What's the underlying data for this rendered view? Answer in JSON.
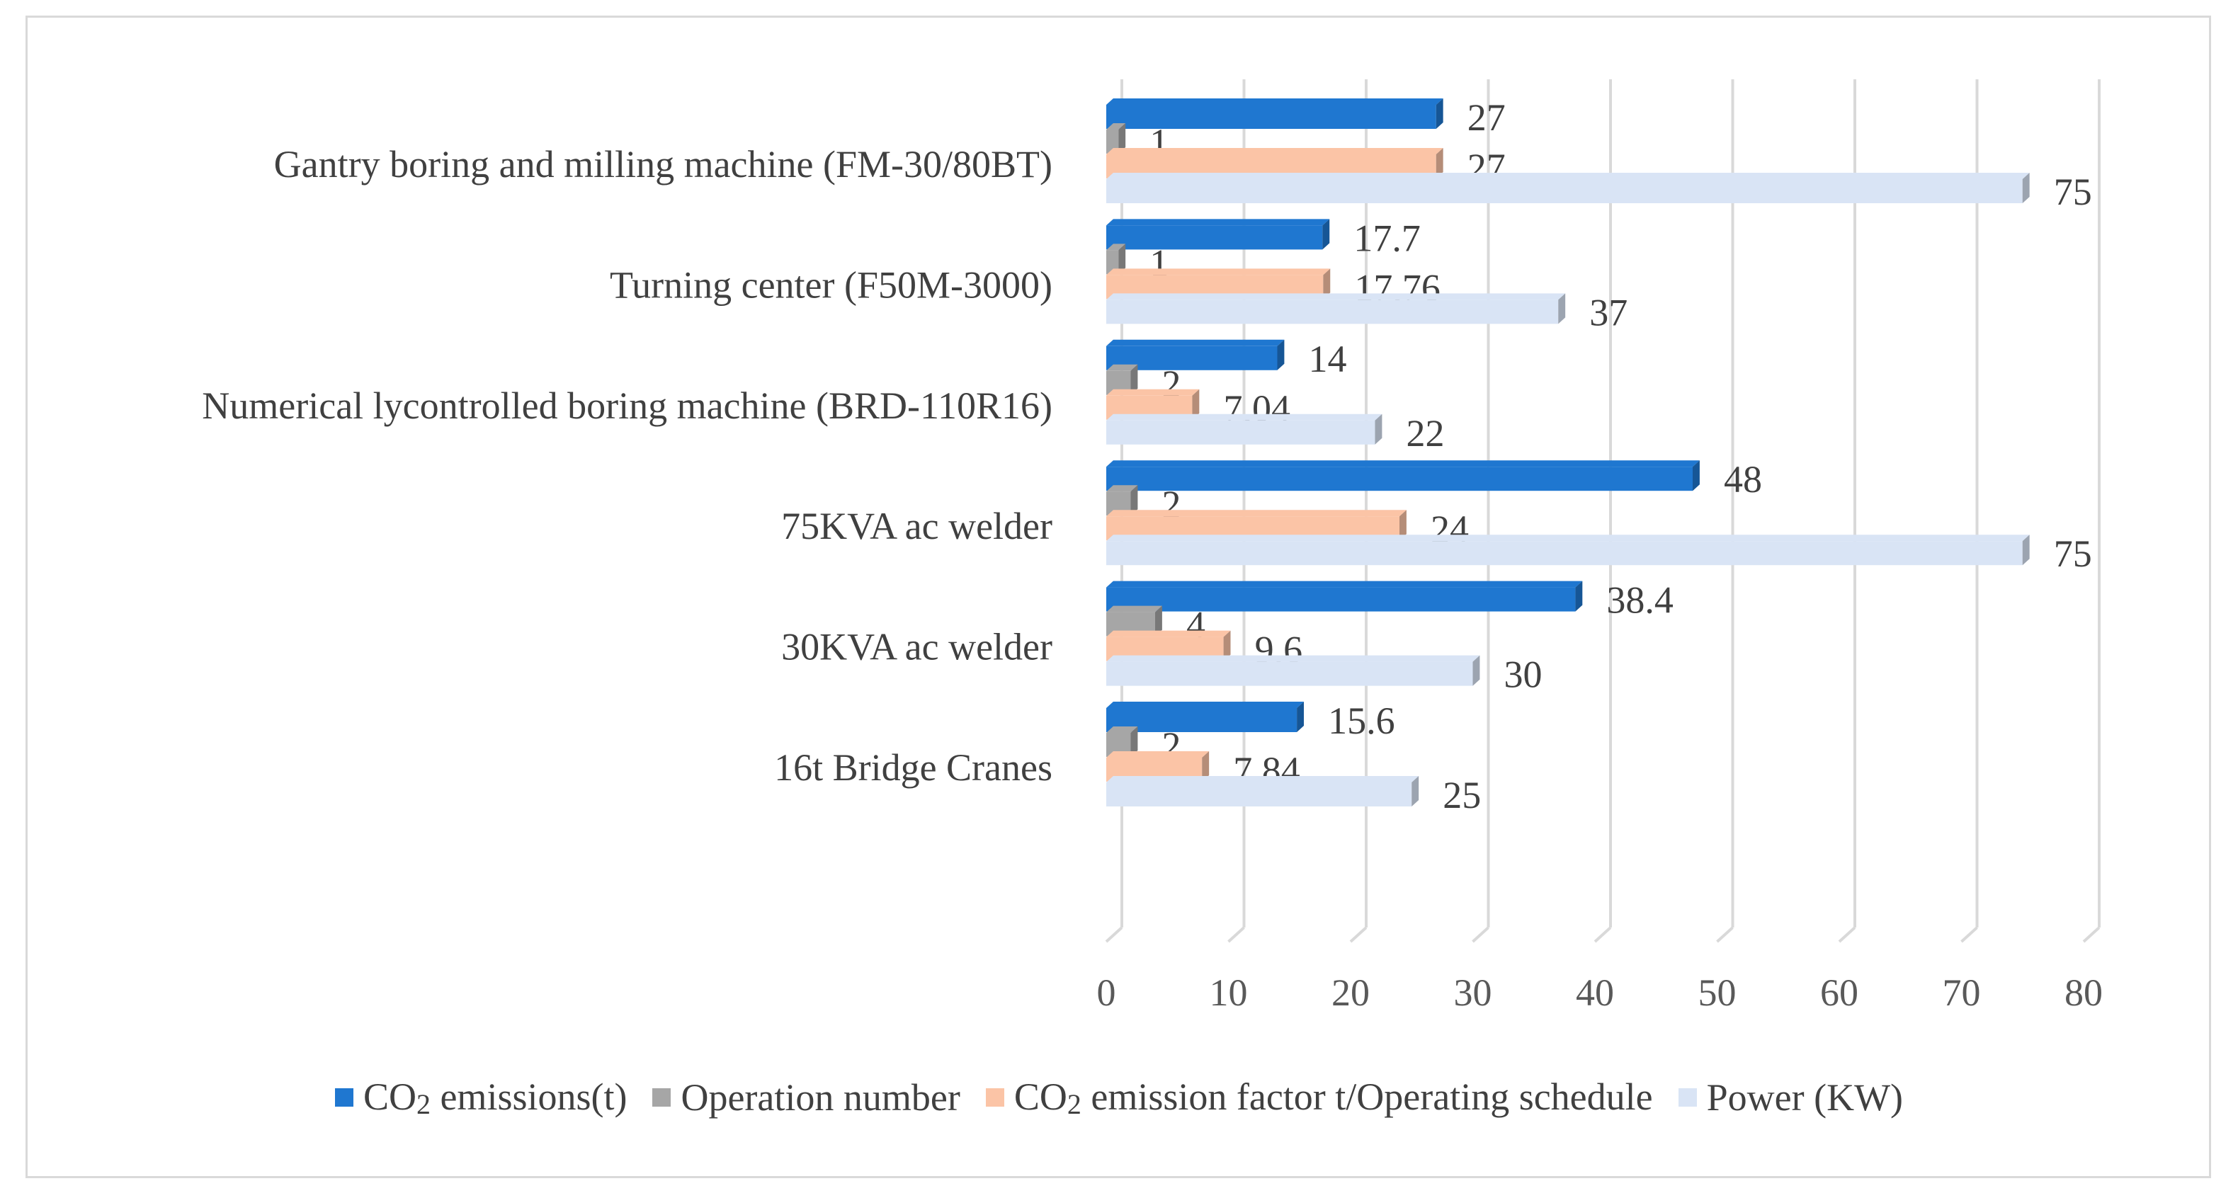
{
  "chart_data": {
    "type": "bar",
    "orientation": "horizontal",
    "style": "3d",
    "categories": [
      "Gantry boring and milling machine (FM-30/80BT)",
      "Turning center (F50M-3000)",
      "Numerical lycontrolled boring machine (BRD-110R16)",
      "75KVA ac welder",
      "30KVA ac welder",
      "16t Bridge Cranes"
    ],
    "series": [
      {
        "name": "CO2 emissions(t)",
        "name_main": "CO",
        "name_sub": "2",
        "name_tail": " emissions(t)",
        "color": "#1f77d0",
        "values": [
          27,
          17.7,
          14,
          48,
          38.4,
          15.6
        ],
        "labels": [
          "27",
          "17.7",
          "14",
          "48",
          "38.4",
          "15.6"
        ]
      },
      {
        "name": "Operation number",
        "name_main": "Operation number",
        "name_sub": "",
        "name_tail": "",
        "color": "#a6a6a6",
        "values": [
          1,
          1,
          2,
          2,
          4,
          2
        ],
        "labels": [
          "1",
          "1",
          "2",
          "2",
          "4",
          "2"
        ]
      },
      {
        "name": "CO2 emission factor t/Operating schedule",
        "name_main": "CO",
        "name_sub": "2",
        "name_tail": " emission factor t/Operating schedule",
        "color": "#fbc4a6",
        "values": [
          27,
          17.76,
          7.04,
          24,
          9.6,
          7.84
        ],
        "labels": [
          "27",
          "17.76",
          "7.04",
          "24",
          "9.6",
          "7.84"
        ]
      },
      {
        "name": "Power (KW)",
        "name_main": "Power (KW)",
        "name_sub": "",
        "name_tail": "",
        "color": "#d9e4f5",
        "values": [
          75,
          37,
          22,
          75,
          30,
          25
        ],
        "labels": [
          "75",
          "37",
          "22",
          "75",
          "30",
          "25"
        ]
      }
    ],
    "xlim": [
      0,
      80
    ],
    "ticks": [
      0,
      10,
      20,
      30,
      40,
      50,
      60,
      70,
      80
    ],
    "tick_labels": [
      "0",
      "10",
      "20",
      "30",
      "40",
      "50",
      "60",
      "70",
      "80"
    ],
    "grid": true,
    "legend_position": "bottom",
    "title": "",
    "xlabel": "",
    "ylabel": ""
  }
}
